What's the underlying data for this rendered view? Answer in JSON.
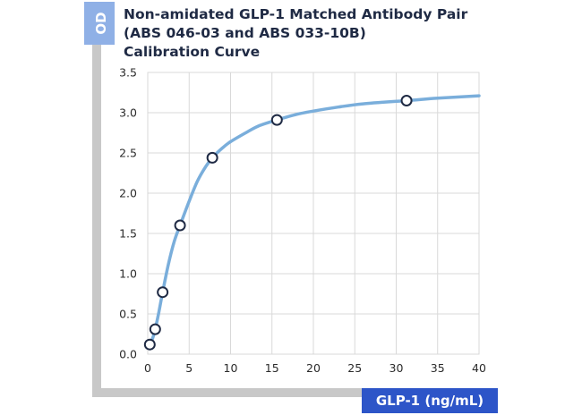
{
  "chart_data": {
    "type": "scatter",
    "title": [
      "Non-amidated GLP-1 Matched Antibody Pair",
      "(ABS 046-03 and ABS 033-10B)",
      "Calibration Curve"
    ],
    "ylabel": "OD",
    "xlabel": "GLP-1 (ng/mL)",
    "xlim": [
      0,
      40
    ],
    "ylim": [
      0,
      3.5
    ],
    "xticks": [
      0,
      5,
      10,
      15,
      20,
      25,
      30,
      35,
      40
    ],
    "yticks": [
      "0.0",
      "0.5",
      "1.0",
      "1.5",
      "2.0",
      "2.5",
      "3.0",
      "3.5"
    ],
    "grid": true,
    "series": [
      {
        "x": [
          0.25,
          0.9,
          1.8,
          3.9,
          7.8,
          15.6,
          31.25
        ],
        "y": [
          0.12,
          0.31,
          0.77,
          1.6,
          2.44,
          2.91,
          3.15
        ]
      }
    ],
    "fit": {
      "x": [
        0.25,
        0.6,
        0.9,
        1.3,
        1.8,
        2.5,
        3.2,
        3.9,
        5,
        6,
        7,
        7.8,
        9,
        10,
        12,
        13.5,
        15.6,
        18,
        20,
        23,
        26,
        31.25,
        35,
        40
      ],
      "y": [
        0.12,
        0.2,
        0.31,
        0.5,
        0.77,
        1.12,
        1.4,
        1.6,
        1.9,
        2.15,
        2.33,
        2.44,
        2.56,
        2.64,
        2.76,
        2.84,
        2.91,
        2.98,
        3.02,
        3.07,
        3.11,
        3.15,
        3.18,
        3.21
      ]
    },
    "colors": {
      "curve": "#7aaedb",
      "marker_edge": "#1f2a44",
      "marker_fill": "#ffffff",
      "grid": "#d9d9d9",
      "frame": "#c8c8c8",
      "badge": "#2d55c8",
      "badge_light": "#8fb0e6",
      "title": "#1f2a44"
    }
  }
}
